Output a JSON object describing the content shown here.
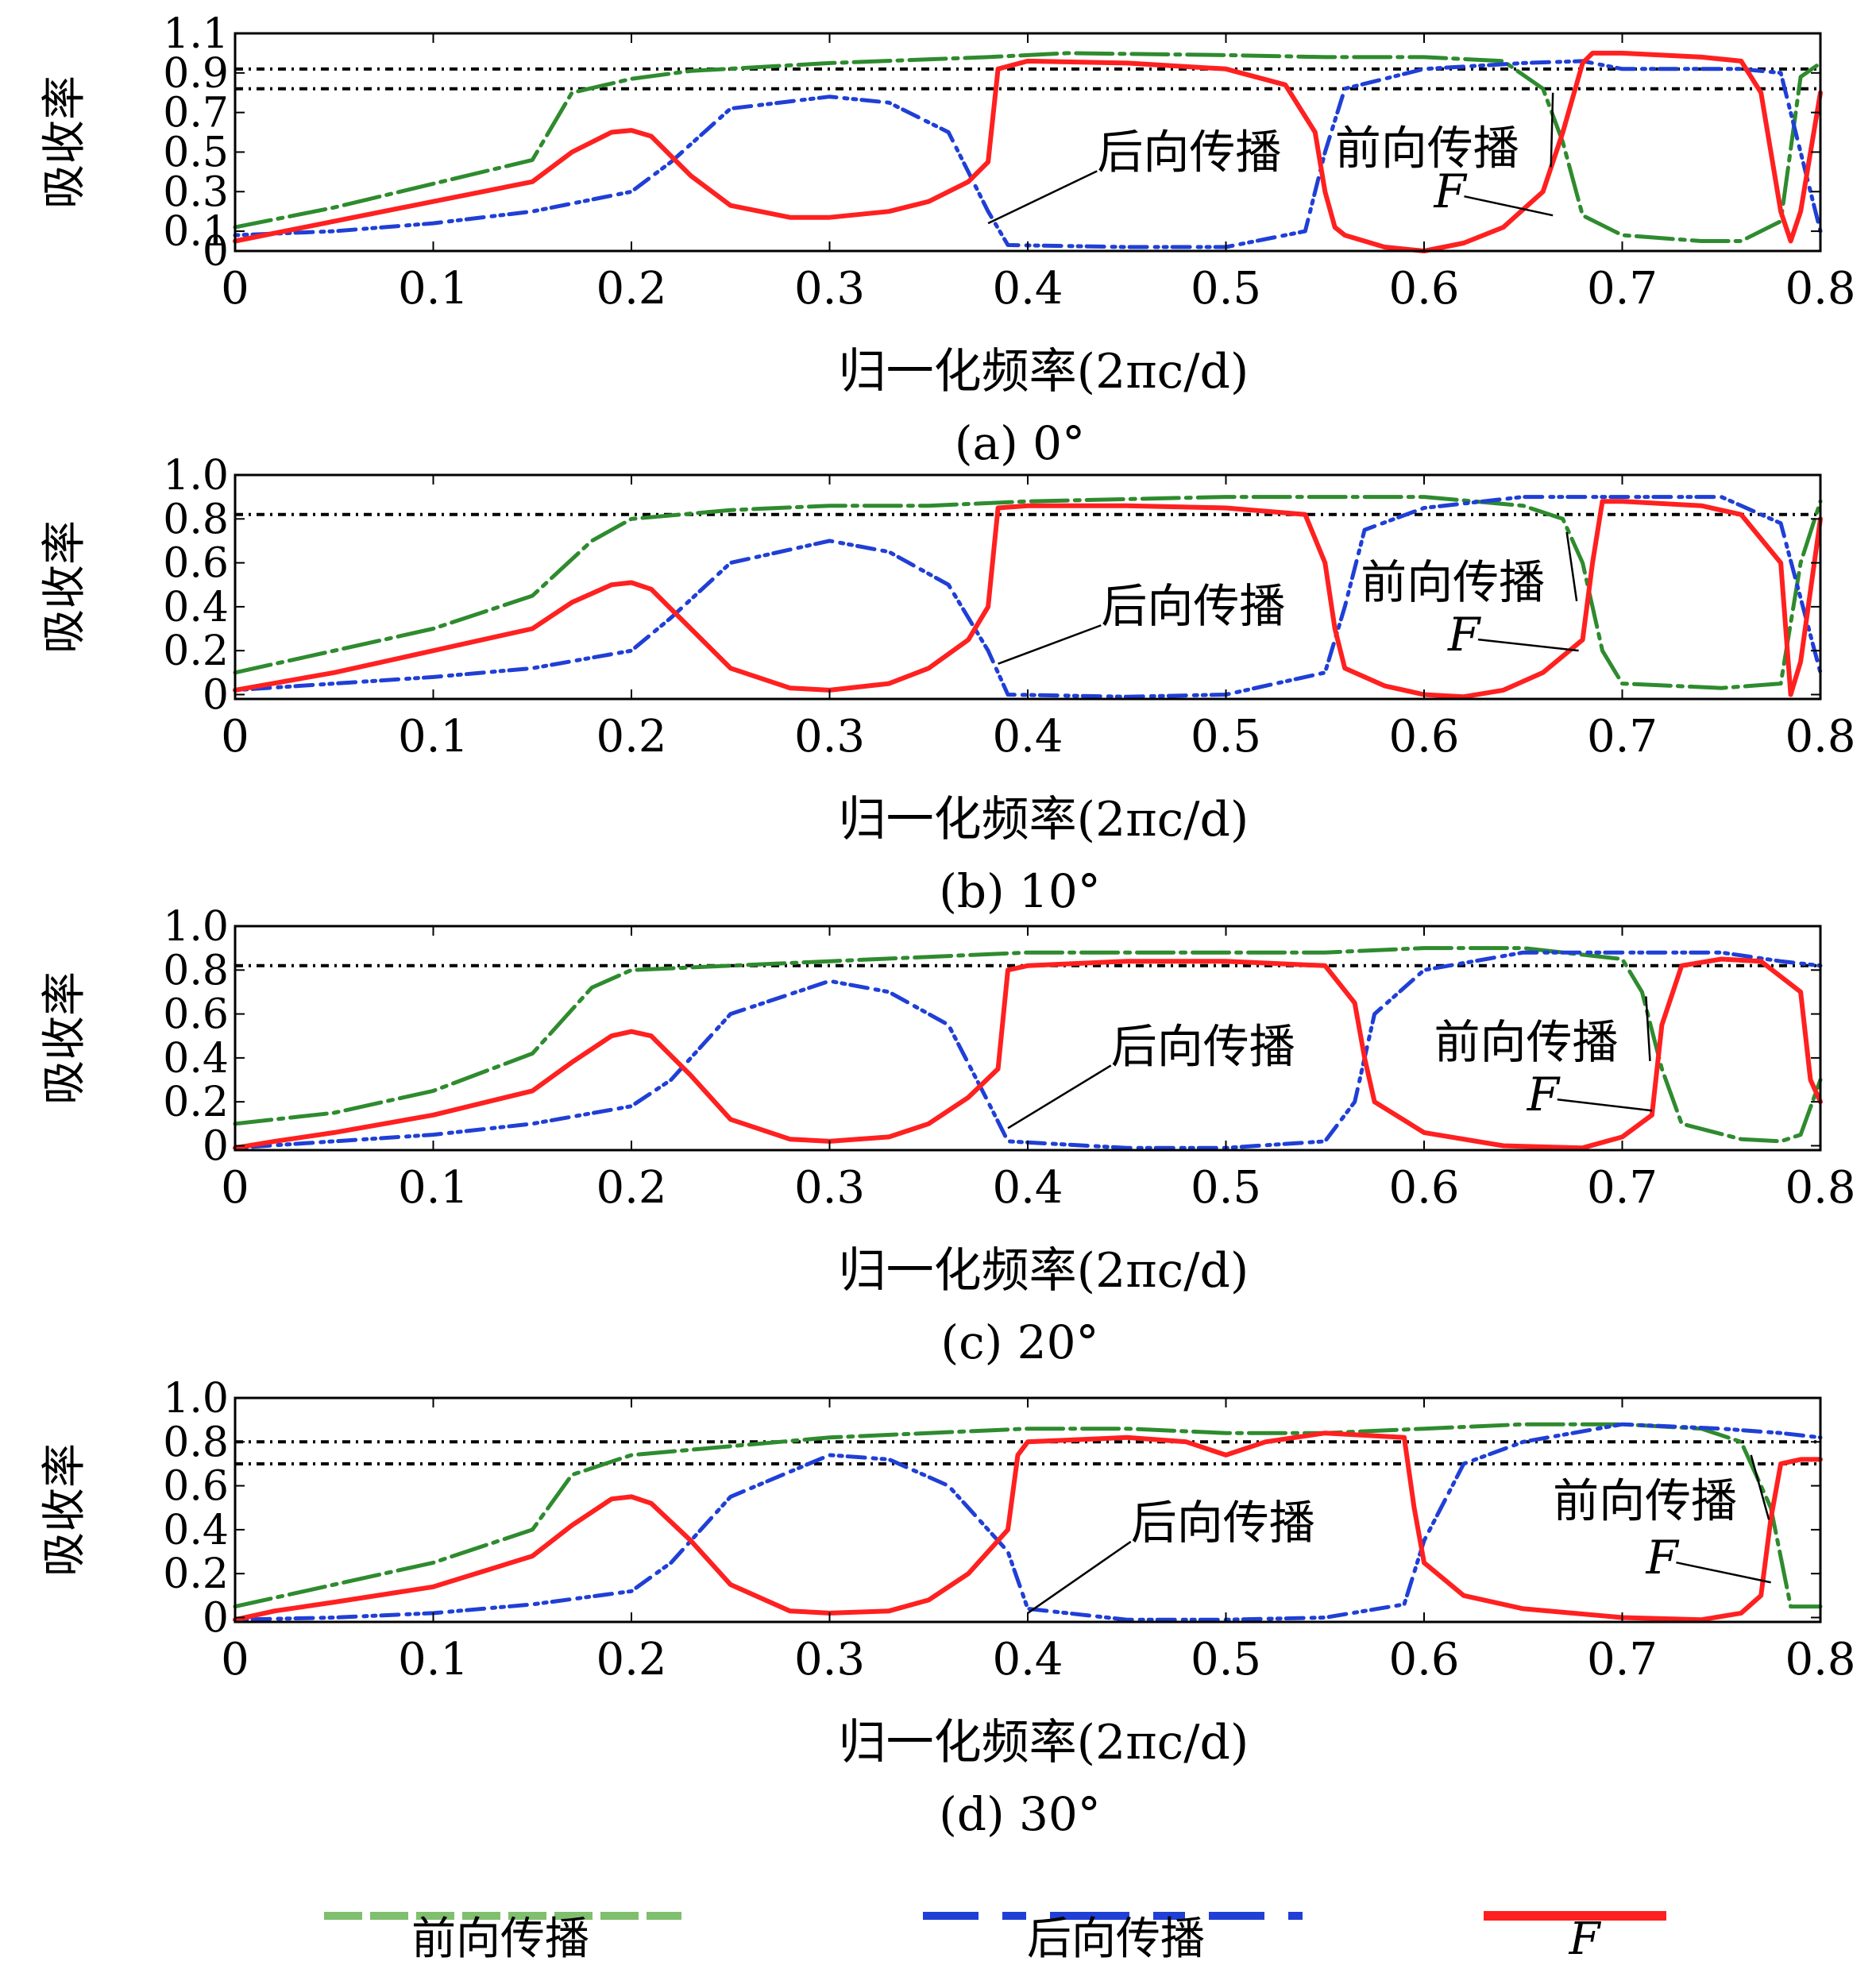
{
  "figure": {
    "ylabel": "吸收率",
    "xlabel": "归一化频率(2πc/d)",
    "legend": {
      "forward": "前向传播",
      "backward": "后向传播",
      "F": "F"
    }
  },
  "colors": {
    "forward": "#2e8b2e",
    "backward": "#1f3fd6",
    "F": "#ff2020",
    "reference": "#000000",
    "legend_forward": "#7fbf6e",
    "legend_backward": "#1f3fd6",
    "legend_F": "#ff2020"
  },
  "chart_data": [
    {
      "type": "line",
      "caption": "(a) 0°",
      "xlabel": "归一化频率(2πc/d)",
      "ylabel": "吸收率",
      "xlim": [
        0,
        0.8
      ],
      "ylim": [
        0,
        1.1
      ],
      "xticks": [
        "0",
        "0.1",
        "0.2",
        "0.3",
        "0.4",
        "0.5",
        "0.6",
        "0.7",
        "0.8"
      ],
      "yticks": [
        {
          "v": 0,
          "label": "0"
        },
        {
          "v": 0.1,
          "label": "0.1"
        },
        {
          "v": 0.3,
          "label": "0.3"
        },
        {
          "v": 0.5,
          "label": "0.5"
        },
        {
          "v": 0.7,
          "label": "0.7"
        },
        {
          "v": 0.9,
          "label": "0.9"
        },
        {
          "v": 1.1,
          "label": "1.1"
        }
      ],
      "reference_lines": [
        0.92,
        0.82
      ],
      "annotations": [
        {
          "text": "后向传播",
          "tx": 0.435,
          "ty": 0.42,
          "px": 0.38,
          "py": 0.14
        },
        {
          "text": "前向传播",
          "tx": 0.555,
          "ty": 0.44,
          "px": 0.665,
          "py": 0.8
        },
        {
          "text": "F",
          "tx": 0.605,
          "ty": 0.22,
          "px": 0.665,
          "py": 0.18
        }
      ],
      "series": [
        {
          "key": "forward",
          "x": [
            0,
            0.05,
            0.1,
            0.15,
            0.17,
            0.2,
            0.23,
            0.3,
            0.38,
            0.42,
            0.5,
            0.55,
            0.6,
            0.64,
            0.66,
            0.67,
            0.68,
            0.7,
            0.74,
            0.76,
            0.78,
            0.79,
            0.8
          ],
          "y": [
            0.12,
            0.22,
            0.34,
            0.46,
            0.8,
            0.87,
            0.91,
            0.95,
            0.98,
            1.0,
            0.99,
            0.98,
            0.98,
            0.96,
            0.82,
            0.55,
            0.18,
            0.08,
            0.05,
            0.05,
            0.15,
            0.88,
            0.95
          ]
        },
        {
          "key": "backward",
          "x": [
            0,
            0.05,
            0.1,
            0.15,
            0.2,
            0.22,
            0.25,
            0.3,
            0.33,
            0.36,
            0.38,
            0.39,
            0.45,
            0.5,
            0.54,
            0.55,
            0.56,
            0.6,
            0.65,
            0.68,
            0.7,
            0.76,
            0.78,
            0.8
          ],
          "y": [
            0.08,
            0.1,
            0.14,
            0.2,
            0.3,
            0.45,
            0.72,
            0.78,
            0.75,
            0.6,
            0.2,
            0.03,
            0.02,
            0.02,
            0.1,
            0.5,
            0.82,
            0.92,
            0.95,
            0.96,
            0.92,
            0.92,
            0.9,
            0.1
          ]
        },
        {
          "key": "F",
          "x": [
            0,
            0.05,
            0.1,
            0.15,
            0.17,
            0.19,
            0.2,
            0.21,
            0.23,
            0.25,
            0.28,
            0.3,
            0.33,
            0.35,
            0.37,
            0.38,
            0.385,
            0.4,
            0.45,
            0.5,
            0.53,
            0.545,
            0.55,
            0.555,
            0.56,
            0.58,
            0.6,
            0.62,
            0.64,
            0.66,
            0.67,
            0.68,
            0.685,
            0.7,
            0.74,
            0.76,
            0.77,
            0.78,
            0.785,
            0.79,
            0.8
          ],
          "y": [
            0.05,
            0.15,
            0.25,
            0.35,
            0.5,
            0.6,
            0.61,
            0.58,
            0.38,
            0.23,
            0.17,
            0.17,
            0.2,
            0.25,
            0.35,
            0.45,
            0.92,
            0.96,
            0.95,
            0.92,
            0.84,
            0.6,
            0.3,
            0.12,
            0.08,
            0.02,
            0.0,
            0.04,
            0.12,
            0.3,
            0.6,
            0.95,
            1.0,
            1.0,
            0.98,
            0.96,
            0.8,
            0.2,
            0.05,
            0.2,
            0.8
          ]
        }
      ]
    },
    {
      "type": "line",
      "caption": "(b) 10°",
      "xlabel": "归一化频率(2πc/d)",
      "ylabel": "吸收率",
      "xlim": [
        0,
        0.8
      ],
      "ylim": [
        -0.02,
        1.0
      ],
      "xticks": [
        "0",
        "0.1",
        "0.2",
        "0.3",
        "0.4",
        "0.5",
        "0.6",
        "0.7",
        "0.8"
      ],
      "yticks": [
        {
          "v": 0,
          "label": "0"
        },
        {
          "v": 0.2,
          "label": "0.2"
        },
        {
          "v": 0.4,
          "label": "0.4"
        },
        {
          "v": 0.6,
          "label": "0.6"
        },
        {
          "v": 0.8,
          "label": "0.8"
        },
        {
          "v": 1.0,
          "label": "1.0"
        }
      ],
      "reference_lines": [
        0.82
      ],
      "annotations": [
        {
          "text": "后向传播",
          "tx": 0.437,
          "ty": 0.33,
          "px": 0.385,
          "py": 0.14
        },
        {
          "text": "前向传播",
          "tx": 0.568,
          "ty": 0.44,
          "px": 0.672,
          "py": 0.74
        },
        {
          "text": "F",
          "tx": 0.612,
          "ty": 0.2,
          "px": 0.678,
          "py": 0.2
        }
      ],
      "series": [
        {
          "key": "forward",
          "x": [
            0,
            0.05,
            0.1,
            0.15,
            0.18,
            0.2,
            0.25,
            0.3,
            0.35,
            0.4,
            0.5,
            0.55,
            0.6,
            0.65,
            0.67,
            0.68,
            0.69,
            0.7,
            0.75,
            0.78,
            0.79,
            0.8
          ],
          "y": [
            0.1,
            0.2,
            0.3,
            0.45,
            0.7,
            0.8,
            0.84,
            0.86,
            0.86,
            0.88,
            0.9,
            0.9,
            0.9,
            0.86,
            0.8,
            0.6,
            0.2,
            0.05,
            0.03,
            0.05,
            0.6,
            0.88
          ]
        },
        {
          "key": "backward",
          "x": [
            0,
            0.05,
            0.1,
            0.15,
            0.2,
            0.22,
            0.25,
            0.3,
            0.33,
            0.36,
            0.38,
            0.39,
            0.45,
            0.5,
            0.55,
            0.56,
            0.57,
            0.6,
            0.65,
            0.7,
            0.75,
            0.78,
            0.8
          ],
          "y": [
            0.02,
            0.05,
            0.08,
            0.12,
            0.2,
            0.35,
            0.6,
            0.7,
            0.65,
            0.5,
            0.2,
            0.0,
            -0.01,
            0.0,
            0.1,
            0.4,
            0.75,
            0.85,
            0.9,
            0.9,
            0.9,
            0.78,
            0.1
          ]
        },
        {
          "key": "F",
          "x": [
            0,
            0.05,
            0.1,
            0.15,
            0.17,
            0.19,
            0.2,
            0.21,
            0.23,
            0.25,
            0.28,
            0.3,
            0.33,
            0.35,
            0.37,
            0.38,
            0.385,
            0.4,
            0.45,
            0.5,
            0.54,
            0.55,
            0.555,
            0.56,
            0.58,
            0.6,
            0.62,
            0.64,
            0.66,
            0.68,
            0.685,
            0.69,
            0.7,
            0.74,
            0.76,
            0.78,
            0.785,
            0.79,
            0.8
          ],
          "y": [
            0.02,
            0.1,
            0.2,
            0.3,
            0.42,
            0.5,
            0.51,
            0.48,
            0.3,
            0.12,
            0.03,
            0.02,
            0.05,
            0.12,
            0.25,
            0.4,
            0.85,
            0.86,
            0.86,
            0.85,
            0.82,
            0.6,
            0.3,
            0.12,
            0.04,
            0.0,
            -0.01,
            0.02,
            0.1,
            0.25,
            0.6,
            0.88,
            0.88,
            0.86,
            0.82,
            0.6,
            0.0,
            0.15,
            0.8
          ]
        }
      ]
    },
    {
      "type": "line",
      "caption": "(c) 20°",
      "xlabel": "归一化频率(2πc/d)",
      "ylabel": "吸收率",
      "xlim": [
        0,
        0.8
      ],
      "ylim": [
        -0.02,
        1.0
      ],
      "xticks": [
        "0",
        "0.1",
        "0.2",
        "0.3",
        "0.4",
        "0.5",
        "0.6",
        "0.7",
        "0.8"
      ],
      "yticks": [
        {
          "v": 0,
          "label": "0"
        },
        {
          "v": 0.2,
          "label": "0.2"
        },
        {
          "v": 0.4,
          "label": "0.4"
        },
        {
          "v": 0.6,
          "label": "0.6"
        },
        {
          "v": 0.8,
          "label": "0.8"
        },
        {
          "v": 1.0,
          "label": "1.0"
        }
      ],
      "reference_lines": [
        0.82
      ],
      "annotations": [
        {
          "text": "后向传播",
          "tx": 0.442,
          "ty": 0.38,
          "px": 0.39,
          "py": 0.08
        },
        {
          "text": "前向传播",
          "tx": 0.605,
          "ty": 0.4,
          "px": 0.712,
          "py": 0.68
        },
        {
          "text": "F",
          "tx": 0.652,
          "ty": 0.16,
          "px": 0.715,
          "py": 0.16
        }
      ],
      "series": [
        {
          "key": "forward",
          "x": [
            0,
            0.05,
            0.1,
            0.15,
            0.18,
            0.2,
            0.25,
            0.3,
            0.35,
            0.4,
            0.5,
            0.55,
            0.6,
            0.65,
            0.7,
            0.71,
            0.72,
            0.73,
            0.76,
            0.78,
            0.79,
            0.8
          ],
          "y": [
            0.1,
            0.15,
            0.25,
            0.42,
            0.72,
            0.8,
            0.82,
            0.84,
            0.86,
            0.88,
            0.88,
            0.88,
            0.9,
            0.9,
            0.85,
            0.7,
            0.35,
            0.1,
            0.03,
            0.02,
            0.05,
            0.3
          ]
        },
        {
          "key": "backward",
          "x": [
            0,
            0.05,
            0.1,
            0.15,
            0.2,
            0.22,
            0.25,
            0.3,
            0.33,
            0.36,
            0.38,
            0.39,
            0.45,
            0.5,
            0.55,
            0.565,
            0.575,
            0.6,
            0.65,
            0.7,
            0.75,
            0.78,
            0.8
          ],
          "y": [
            -0.01,
            0.02,
            0.05,
            0.1,
            0.18,
            0.3,
            0.6,
            0.75,
            0.7,
            0.55,
            0.2,
            0.02,
            -0.01,
            -0.01,
            0.02,
            0.2,
            0.6,
            0.8,
            0.88,
            0.88,
            0.88,
            0.84,
            0.82
          ]
        },
        {
          "key": "F",
          "x": [
            0,
            0.02,
            0.05,
            0.1,
            0.15,
            0.17,
            0.19,
            0.2,
            0.21,
            0.23,
            0.25,
            0.28,
            0.3,
            0.33,
            0.35,
            0.37,
            0.385,
            0.39,
            0.4,
            0.45,
            0.5,
            0.55,
            0.565,
            0.57,
            0.575,
            0.6,
            0.64,
            0.68,
            0.7,
            0.715,
            0.72,
            0.73,
            0.75,
            0.77,
            0.79,
            0.795,
            0.8
          ],
          "y": [
            -0.01,
            0.02,
            0.06,
            0.14,
            0.25,
            0.38,
            0.5,
            0.52,
            0.5,
            0.32,
            0.12,
            0.03,
            0.02,
            0.04,
            0.1,
            0.22,
            0.35,
            0.8,
            0.82,
            0.84,
            0.84,
            0.82,
            0.65,
            0.4,
            0.2,
            0.06,
            0.0,
            -0.01,
            0.04,
            0.14,
            0.55,
            0.82,
            0.85,
            0.84,
            0.7,
            0.3,
            0.2
          ]
        }
      ]
    },
    {
      "type": "line",
      "caption": "(d) 30°",
      "xlabel": "归一化频率(2πc/d)",
      "ylabel": "吸收率",
      "xlim": [
        0,
        0.8
      ],
      "ylim": [
        -0.02,
        1.0
      ],
      "xticks": [
        "0",
        "0.1",
        "0.2",
        "0.3",
        "0.4",
        "0.5",
        "0.6",
        "0.7",
        "0.8"
      ],
      "yticks": [
        {
          "v": 0,
          "label": "0"
        },
        {
          "v": 0.2,
          "label": "0.2"
        },
        {
          "v": 0.4,
          "label": "0.4"
        },
        {
          "v": 0.6,
          "label": "0.6"
        },
        {
          "v": 0.8,
          "label": "0.8"
        },
        {
          "v": 1.0,
          "label": "1.0"
        }
      ],
      "reference_lines": [
        0.8,
        0.7
      ],
      "annotations": [
        {
          "text": "后向传播",
          "tx": 0.452,
          "ty": 0.36,
          "px": 0.4,
          "py": 0.02
        },
        {
          "text": "前向传播",
          "tx": 0.665,
          "ty": 0.46,
          "px": 0.765,
          "py": 0.74
        },
        {
          "text": "F",
          "tx": 0.712,
          "ty": 0.2,
          "px": 0.775,
          "py": 0.16
        }
      ],
      "series": [
        {
          "key": "forward",
          "x": [
            0,
            0.05,
            0.1,
            0.15,
            0.17,
            0.2,
            0.25,
            0.3,
            0.35,
            0.4,
            0.45,
            0.5,
            0.55,
            0.6,
            0.65,
            0.7,
            0.74,
            0.76,
            0.775,
            0.785,
            0.8
          ],
          "y": [
            0.05,
            0.15,
            0.25,
            0.4,
            0.65,
            0.74,
            0.78,
            0.82,
            0.84,
            0.86,
            0.86,
            0.84,
            0.84,
            0.86,
            0.88,
            0.88,
            0.86,
            0.8,
            0.5,
            0.05,
            0.05
          ]
        },
        {
          "key": "backward",
          "x": [
            0,
            0.05,
            0.1,
            0.15,
            0.2,
            0.22,
            0.25,
            0.3,
            0.33,
            0.36,
            0.39,
            0.4,
            0.45,
            0.5,
            0.55,
            0.59,
            0.6,
            0.62,
            0.65,
            0.7,
            0.75,
            0.78,
            0.8
          ],
          "y": [
            -0.01,
            0.0,
            0.02,
            0.06,
            0.12,
            0.25,
            0.55,
            0.74,
            0.72,
            0.6,
            0.3,
            0.04,
            -0.01,
            -0.01,
            0.0,
            0.06,
            0.35,
            0.7,
            0.8,
            0.88,
            0.86,
            0.84,
            0.82
          ]
        },
        {
          "key": "F",
          "x": [
            0,
            0.02,
            0.05,
            0.1,
            0.15,
            0.17,
            0.19,
            0.2,
            0.21,
            0.23,
            0.25,
            0.28,
            0.3,
            0.33,
            0.35,
            0.37,
            0.39,
            0.395,
            0.4,
            0.45,
            0.48,
            0.5,
            0.52,
            0.55,
            0.59,
            0.595,
            0.6,
            0.62,
            0.65,
            0.7,
            0.74,
            0.76,
            0.77,
            0.775,
            0.78,
            0.79,
            0.8
          ],
          "y": [
            -0.01,
            0.03,
            0.07,
            0.14,
            0.28,
            0.42,
            0.54,
            0.55,
            0.52,
            0.35,
            0.15,
            0.03,
            0.02,
            0.03,
            0.08,
            0.2,
            0.4,
            0.74,
            0.8,
            0.82,
            0.8,
            0.74,
            0.8,
            0.84,
            0.82,
            0.5,
            0.25,
            0.1,
            0.04,
            0.0,
            -0.01,
            0.02,
            0.1,
            0.45,
            0.7,
            0.72,
            0.72
          ]
        }
      ]
    }
  ]
}
